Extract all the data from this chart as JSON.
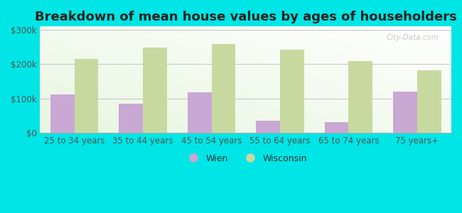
{
  "title": "Breakdown of mean house values by ages of householders",
  "categories": [
    "25 to 34 years",
    "35 to 44 years",
    "45 to 54 years",
    "55 to 64 years",
    "65 to 74 years",
    "75 years+"
  ],
  "wien_values": [
    113000,
    85000,
    118000,
    35000,
    32000,
    120000
  ],
  "wisconsin_values": [
    215000,
    248000,
    258000,
    243000,
    210000,
    183000
  ],
  "wien_color": "#c9a8d4",
  "wisconsin_color": "#c8d9a0",
  "background_color": "#00e5e5",
  "plot_bg_color": "#e8f5e0",
  "ylabel_ticks": [
    0,
    100000,
    200000,
    300000
  ],
  "ylabel_labels": [
    "$0",
    "$100k",
    "$200k",
    "$300k"
  ],
  "ylim": [
    0,
    310000
  ],
  "legend_wien": "Wien",
  "legend_wisconsin": "Wisconsin",
  "title_fontsize": 13,
  "tick_fontsize": 8.5,
  "legend_fontsize": 9,
  "bar_width": 0.35,
  "watermark": "City-Data.com"
}
